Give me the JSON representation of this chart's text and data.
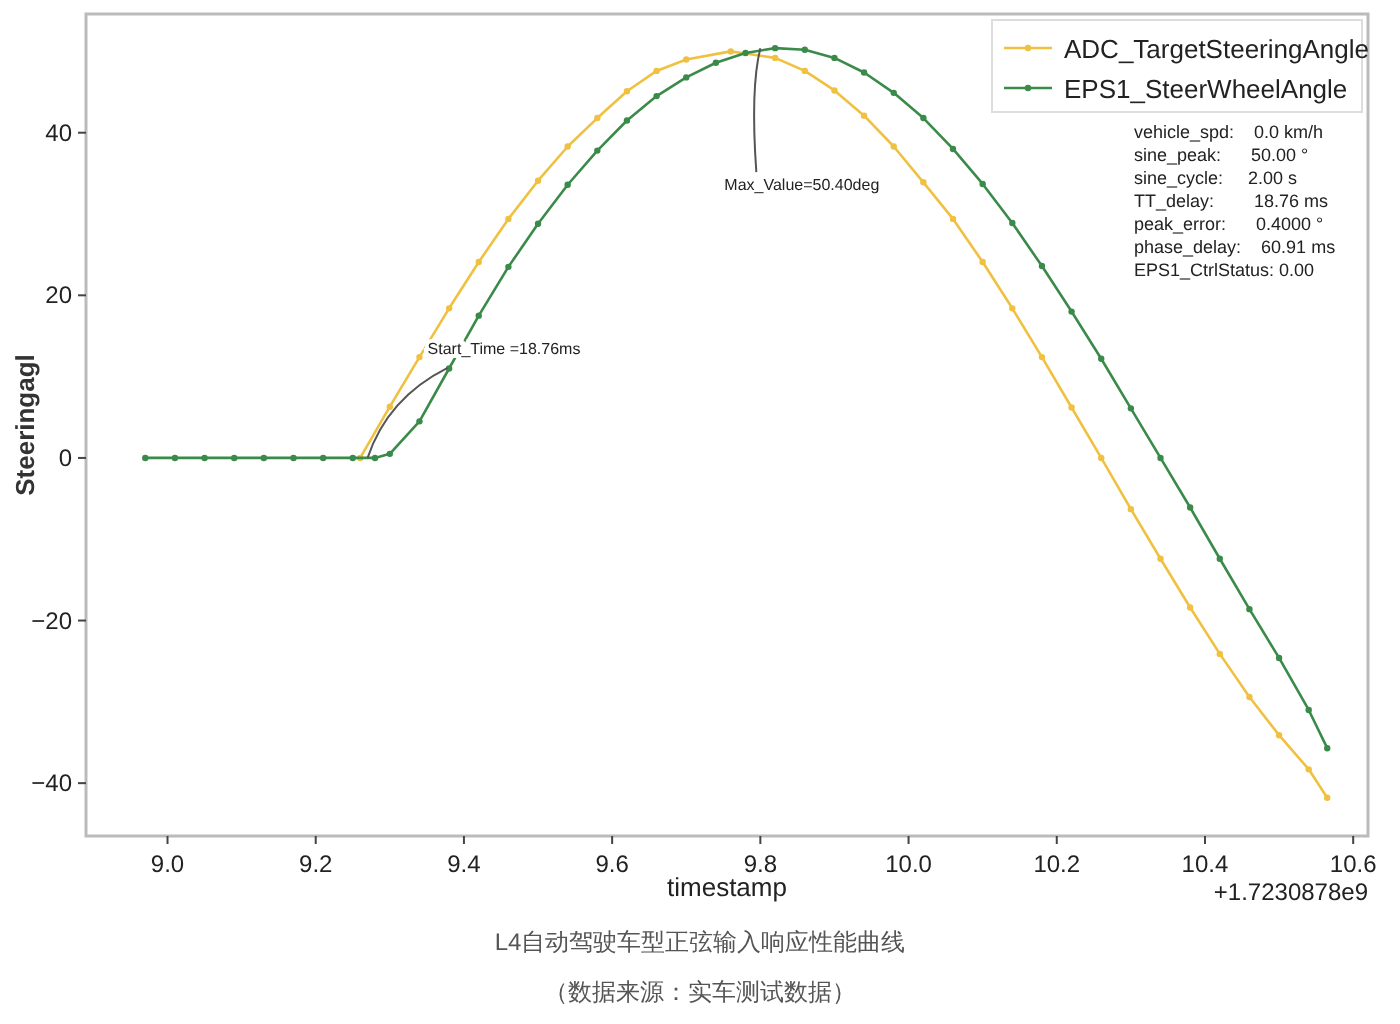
{
  "chart_data": {
    "type": "line",
    "title": "L4自动驾驶车型正弦输入响应性能曲线",
    "xlabel": "timestamp",
    "ylabel": "Steeringagl",
    "xlim": [
      8.89,
      10.62
    ],
    "ylim": [
      -46.5,
      54.6
    ],
    "xticks": [
      {
        "value": 9.0,
        "label": "9.0"
      },
      9.2,
      9.4,
      9.6,
      9.8,
      {
        "value": 10.0,
        "label": "10.0"
      },
      10.2,
      10.4,
      10.6
    ],
    "yticks": [
      -40,
      -20,
      0,
      20,
      40
    ],
    "grid": false,
    "legend": "top right",
    "marker": "circle",
    "line_style": "solid",
    "series": [
      {
        "name": "ADC_TargetSteeringAngle",
        "color": "#f0c040",
        "x": [
          9.26,
          9.3,
          9.34,
          9.38,
          9.42,
          9.46,
          9.5,
          9.54,
          9.58,
          9.62,
          9.66,
          9.7,
          9.76,
          9.82,
          9.86,
          9.9,
          9.94,
          9.98,
          10.02,
          10.06,
          10.1,
          10.14,
          10.18,
          10.22,
          10.26,
          10.3,
          10.34,
          10.38,
          10.42,
          10.46,
          10.5,
          10.54,
          10.565
        ],
        "values": [
          0,
          6.3,
          12.4,
          18.4,
          24.1,
          29.4,
          34.1,
          38.3,
          41.8,
          45.1,
          47.6,
          49.0,
          50.0,
          49.2,
          47.6,
          45.2,
          42.1,
          38.3,
          33.9,
          29.4,
          24.1,
          18.4,
          12.4,
          6.2,
          0,
          -6.3,
          -12.4,
          -18.4,
          -24.1,
          -29.4,
          -34.1,
          -38.3,
          -41.8
        ]
      },
      {
        "name": "EPS1_SteerWheelAngle",
        "color": "#3a8a4a",
        "x": [
          8.97,
          9.01,
          9.05,
          9.09,
          9.13,
          9.17,
          9.21,
          9.25,
          9.28,
          9.3,
          9.34,
          9.38,
          9.42,
          9.46,
          9.5,
          9.54,
          9.58,
          9.62,
          9.66,
          9.7,
          9.74,
          9.78,
          9.82,
          9.86,
          9.9,
          9.94,
          9.98,
          10.02,
          10.06,
          10.1,
          10.14,
          10.18,
          10.22,
          10.26,
          10.3,
          10.34,
          10.38,
          10.42,
          10.46,
          10.5,
          10.54,
          10.565
        ],
        "values": [
          0,
          0,
          0,
          0,
          0,
          0,
          0,
          0,
          0,
          0.5,
          4.5,
          11.0,
          17.5,
          23.5,
          28.8,
          33.6,
          37.8,
          41.5,
          44.5,
          46.8,
          48.6,
          49.8,
          50.4,
          50.2,
          49.2,
          47.4,
          44.9,
          41.8,
          38.0,
          33.7,
          28.9,
          23.6,
          18.0,
          12.2,
          6.1,
          0.0,
          -6.1,
          -12.4,
          -18.6,
          -24.6,
          -31.0,
          -35.7
        ]
      }
    ],
    "annotations": [
      {
        "text": "Start_Time =18.76ms",
        "x": 9.27,
        "y": 0
      },
      {
        "text": "Max_Value=50.40deg",
        "x": 9.8,
        "y": 50.4
      },
      "vehicle_spd:    0.0 km/h",
      "sine_peak:      50.00 °",
      "sine_cycle:     2.00 s",
      "TT_delay:        18.76 ms",
      "peak_error:      0.4000 °",
      "phase_delay:    60.91 ms",
      "EPS1_CtrlStatus: 0.00",
      "+1.7230878e9",
      "（数据来源：实车测试数据）"
    ]
  }
}
